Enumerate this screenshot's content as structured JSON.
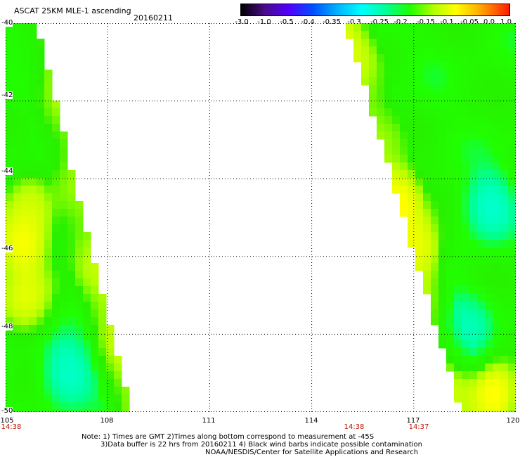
{
  "header": {
    "title": "ASCAT 25KM MLE-1 ascending",
    "date": "20160211"
  },
  "colorbar": {
    "labels": [
      "-3.0",
      "-1.0",
      "-0.5",
      "-0.4",
      "-0.35",
      "-0.3",
      "-0.25",
      "-0.2",
      "-0.15",
      "-0.1",
      "-0.05",
      "0.0",
      "1.0"
    ]
  },
  "axes": {
    "lat_labels": [
      "-40",
      "-42",
      "-44",
      "-46",
      "-48",
      "-50"
    ],
    "lon_labels": [
      "105",
      "108",
      "111",
      "114",
      "117",
      "120"
    ],
    "time_labels": [
      "14:38",
      "14:38",
      "14:37"
    ]
  },
  "map_data": {
    "lon_range": [
      105,
      120
    ],
    "lat_range": [
      -50,
      -40
    ],
    "variable": "MLE",
    "swaths": [
      {
        "name": "west",
        "edge_lon_at_top": 105.9,
        "edge_lon_at_bottom": 108.7,
        "features": [
          {
            "lon": 105.6,
            "lat": -44.9,
            "value": -0.05
          },
          {
            "lon": 105.5,
            "lat": -45.7,
            "value": 0.0
          },
          {
            "lon": 105.7,
            "lat": -47.0,
            "value": -0.03
          },
          {
            "lon": 106.8,
            "lat": -49.0,
            "value": -0.3
          },
          {
            "lon": 105.4,
            "lat": -40.5,
            "value": -0.18
          }
        ]
      },
      {
        "name": "east",
        "edge_lon_at_top": 115.0,
        "edge_lon_at_bottom": 118.4,
        "features": [
          {
            "lon": 114.6,
            "lat": -40.6,
            "value": -0.02
          },
          {
            "lon": 116.5,
            "lat": -44.6,
            "value": 0.0
          },
          {
            "lon": 117.1,
            "lat": -45.8,
            "value": -0.02
          },
          {
            "lon": 119.2,
            "lat": -44.7,
            "value": -0.3
          },
          {
            "lon": 119.4,
            "lat": -49.6,
            "value": 0.0
          },
          {
            "lon": 118.5,
            "lat": -47.8,
            "value": -0.28
          }
        ]
      }
    ]
  },
  "footer": {
    "line1": "Note: 1) Times are GMT 2)Times along bottom correspond to measurement at -45S",
    "line2": "3)Data buffer is 22 hrs from 20160211 4) Black wind barbs indicate possible contamination",
    "line3": "NOAA/NESDIS/Center for Satellite Applications and Research"
  }
}
